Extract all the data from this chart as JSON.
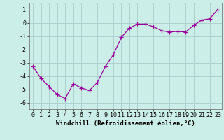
{
  "x": [
    0,
    1,
    2,
    3,
    4,
    5,
    6,
    7,
    8,
    9,
    10,
    11,
    12,
    13,
    14,
    15,
    16,
    17,
    18,
    19,
    20,
    21,
    22,
    23
  ],
  "y": [
    -3.3,
    -4.2,
    -4.8,
    -5.4,
    -5.7,
    -4.6,
    -4.9,
    -5.1,
    -4.5,
    -3.3,
    -2.4,
    -1.1,
    -0.4,
    -0.1,
    -0.1,
    -0.3,
    -0.6,
    -0.7,
    -0.65,
    -0.7,
    -0.2,
    0.2,
    0.3,
    1.0
  ],
  "line_color": "#990099",
  "marker": "+",
  "marker_size": 4,
  "bg_color": "#cceee8",
  "grid_color": "#aacccc",
  "xlabel": "Windchill (Refroidissement éolien,°C)",
  "xlim": [
    -0.5,
    23.5
  ],
  "ylim": [
    -6.5,
    1.5
  ],
  "yticks": [
    -6,
    -5,
    -4,
    -3,
    -2,
    -1,
    0,
    1
  ],
  "xticks": [
    0,
    1,
    2,
    3,
    4,
    5,
    6,
    7,
    8,
    9,
    10,
    11,
    12,
    13,
    14,
    15,
    16,
    17,
    18,
    19,
    20,
    21,
    22,
    23
  ],
  "label_fontsize": 6.5,
  "tick_fontsize": 6.0
}
